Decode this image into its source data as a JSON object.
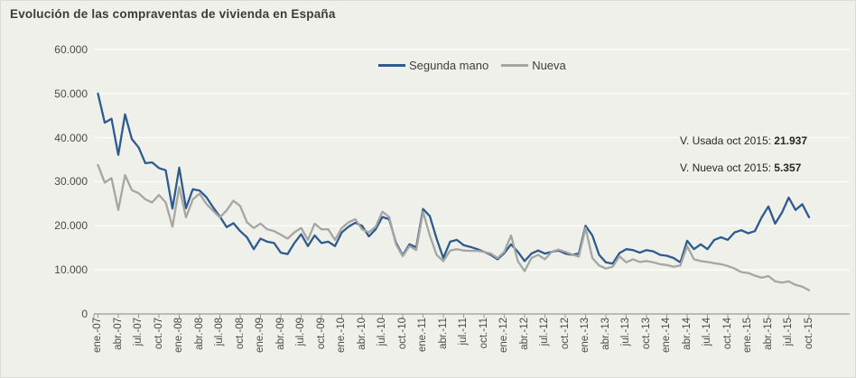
{
  "title": "Evolución de las compraventas de vivienda en España",
  "legend": {
    "items": [
      {
        "label": "Segunda mano",
        "color": "#2e5b8f"
      },
      {
        "label": "Nueva",
        "color": "#a5a5a3"
      }
    ]
  },
  "annotations": [
    {
      "label": "V. Usada oct 2015: ",
      "value": "21.937"
    },
    {
      "label": "V. Nueva oct 2015: ",
      "value": "5.357"
    }
  ],
  "colors": {
    "background": "#f0f0eb",
    "gridline": "#ffffff",
    "axis": "#9a9a9a",
    "segunda_mano": "#2e5b8f",
    "nueva": "#a5a5a3",
    "text": "#4a4a4a"
  },
  "chart_data": {
    "type": "line",
    "title": "Evolución de las compraventas de vivienda en España",
    "x_unit": "month",
    "x_start": "ene.-07",
    "x_end": "oct.-15",
    "x_tick_labels": [
      "ene.-07",
      "abr.-07",
      "jul.-07",
      "oct.-07",
      "ene.-08",
      "abr.-08",
      "jul.-08",
      "oct.-08",
      "ene.-09",
      "abr.-09",
      "jul.-09",
      "oct.-09",
      "ene.-10",
      "abr.-10",
      "jul.-10",
      "oct.-10",
      "ene.-11",
      "abr.-11",
      "jul.-11",
      "oct.-11",
      "ene.-12",
      "abr.-12",
      "jul.-12",
      "oct.-12",
      "ene.-13",
      "abr.-13",
      "jul.-13",
      "oct.-13",
      "ene.-14",
      "abr.-14",
      "jul.-14",
      "oct.-14",
      "ene.-15",
      "abr.-15",
      "jul.-15",
      "oct.-15"
    ],
    "months_per_point": 1,
    "y_ticks": [
      0,
      10000,
      20000,
      30000,
      40000,
      50000,
      60000
    ],
    "y_tick_labels": [
      "0",
      "10.000",
      "20.000",
      "30.000",
      "40.000",
      "50.000",
      "60.000"
    ],
    "ylim": [
      0,
      60000
    ],
    "grid": "horizontal",
    "legend_position": "top-center",
    "series": [
      {
        "name": "Segunda mano",
        "color": "#2e5b8f",
        "values": [
          50000,
          43400,
          44300,
          36100,
          45300,
          39700,
          37800,
          34200,
          34400,
          33100,
          32600,
          23900,
          33200,
          24000,
          28300,
          28000,
          26500,
          24200,
          22100,
          19700,
          20600,
          18800,
          17400,
          14700,
          17100,
          16400,
          16100,
          13900,
          13600,
          16100,
          18100,
          15400,
          17800,
          16100,
          16400,
          15400,
          18500,
          19800,
          20700,
          20000,
          17600,
          19200,
          22000,
          21500,
          16200,
          13300,
          15800,
          15100,
          23800,
          22200,
          17100,
          12700,
          16400,
          16800,
          15600,
          15200,
          14700,
          14100,
          13400,
          12400,
          13800,
          15800,
          14100,
          12000,
          13700,
          14400,
          13700,
          14100,
          14400,
          13700,
          13400,
          13700,
          20000,
          17800,
          13400,
          11700,
          11400,
          13800,
          14700,
          14500,
          13900,
          14500,
          14200,
          13400,
          13200,
          12700,
          11700,
          16600,
          14700,
          15800,
          14700,
          16800,
          17400,
          16800,
          18500,
          19000,
          18300,
          18800,
          21900,
          24400,
          20500,
          23000,
          26400,
          23600,
          24900,
          21937
        ]
      },
      {
        "name": "Nueva",
        "color": "#a5a5a3",
        "values": [
          33800,
          29800,
          30800,
          23600,
          31500,
          28100,
          27400,
          26000,
          25300,
          27000,
          25300,
          19800,
          28800,
          21900,
          26000,
          27300,
          25000,
          23400,
          21900,
          23500,
          25700,
          24500,
          20800,
          19500,
          20500,
          19200,
          18800,
          18000,
          17100,
          18500,
          19500,
          16800,
          20500,
          19200,
          19200,
          16800,
          19500,
          20800,
          21500,
          19200,
          18500,
          19800,
          23200,
          22000,
          15800,
          13100,
          15400,
          14500,
          23200,
          17800,
          13400,
          12000,
          14400,
          14700,
          14400,
          14300,
          14300,
          14100,
          13700,
          12700,
          14100,
          17800,
          12000,
          9700,
          12700,
          13400,
          12400,
          14100,
          14600,
          14100,
          13500,
          13000,
          19500,
          12700,
          11000,
          10300,
          10700,
          13100,
          11700,
          12400,
          11800,
          12000,
          11700,
          11300,
          11100,
          10700,
          11000,
          15400,
          12400,
          12000,
          11800,
          11500,
          11300,
          10900,
          10300,
          9500,
          9300,
          8700,
          8200,
          8600,
          7400,
          7100,
          7400,
          6600,
          6200,
          5357
        ]
      }
    ],
    "annotations": [
      {
        "text": "V. Usada oct 2015: 21.937"
      },
      {
        "text": "V. Nueva oct 2015: 5.357"
      }
    ]
  }
}
